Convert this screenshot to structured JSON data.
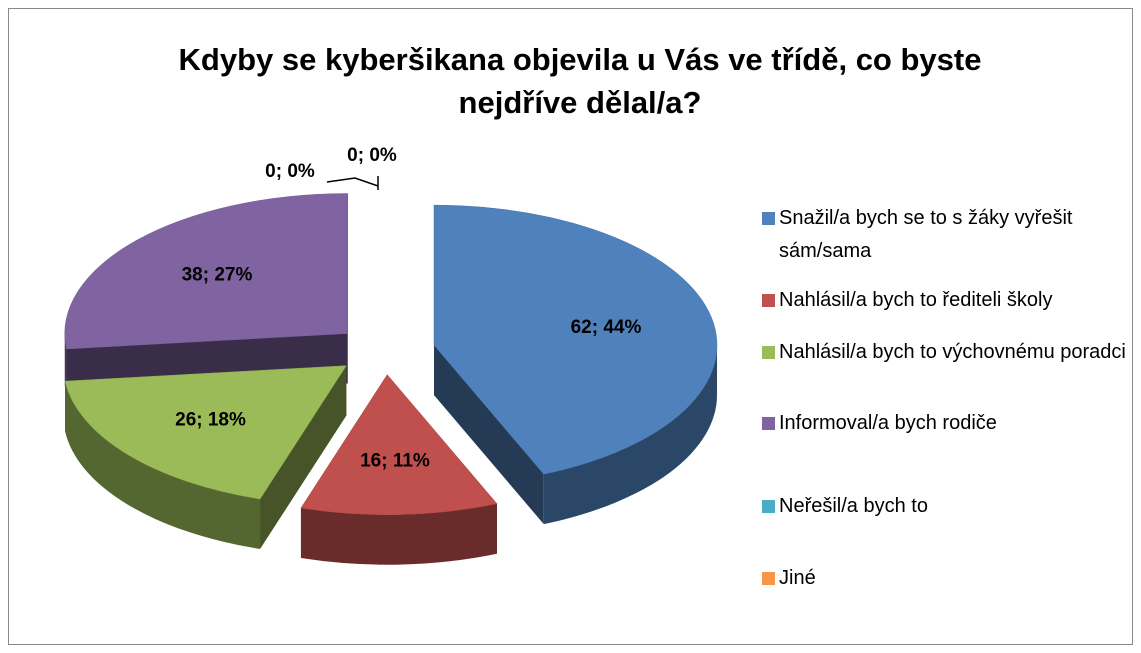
{
  "chart_data": {
    "type": "pie3d",
    "title": "Kdyby se kyberšikana objevila u Vás ve třídě, co byste nejdříve dělal/a?",
    "categories": [
      "Snažil/a bych se to s žáky vyřešit sám/sama",
      "Nahlásil/a bych to řediteli školy",
      "Nahlásil/a bych to výchovnému poradci",
      "Informoval/a bych rodiče",
      "Neřešil/a bych to",
      "Jiné"
    ],
    "values": [
      62,
      16,
      26,
      38,
      0,
      0
    ],
    "value_labels": [
      "62; 44%",
      "16; 11%",
      "26; 18%",
      "38; 27%",
      "0; 0%",
      "0; 0%"
    ],
    "colors": [
      "#4f81bd",
      "#c0504d",
      "#9bbb59",
      "#8064a2",
      "#4bacc6",
      "#f79646"
    ],
    "legend": "right"
  }
}
